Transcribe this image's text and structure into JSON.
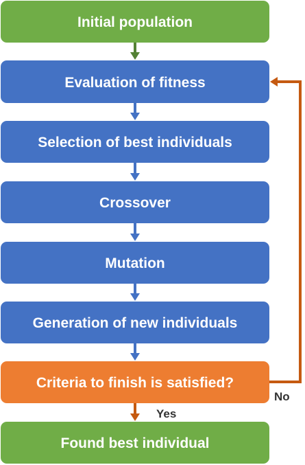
{
  "diagram": {
    "colors": {
      "green": "#70ad47",
      "blue": "#4472c4",
      "orange": "#ed7d31",
      "arrow_blue": "#4472c4",
      "arrow_green": "#548235",
      "arrow_orange": "#c55a11"
    },
    "steps": [
      {
        "id": "initial",
        "label": "Initial population",
        "kind": "start"
      },
      {
        "id": "evaluate",
        "label": "Evaluation of fitness",
        "kind": "process"
      },
      {
        "id": "select",
        "label": "Selection of best individuals",
        "kind": "process"
      },
      {
        "id": "crossover",
        "label": "Crossover",
        "kind": "process"
      },
      {
        "id": "mutation",
        "label": "Mutation",
        "kind": "process"
      },
      {
        "id": "generation",
        "label": "Generation of new individuals",
        "kind": "process"
      },
      {
        "id": "criteria",
        "label": "Criteria to finish is satisfied?",
        "kind": "decision"
      },
      {
        "id": "found",
        "label": "Found best individual",
        "kind": "end"
      }
    ],
    "edges": [
      {
        "from": "initial",
        "to": "evaluate"
      },
      {
        "from": "evaluate",
        "to": "select"
      },
      {
        "from": "select",
        "to": "crossover"
      },
      {
        "from": "crossover",
        "to": "mutation"
      },
      {
        "from": "mutation",
        "to": "generation"
      },
      {
        "from": "generation",
        "to": "criteria"
      },
      {
        "from": "criteria",
        "to": "found",
        "label": "Yes"
      },
      {
        "from": "criteria",
        "to": "evaluate",
        "label": "No",
        "loop": true
      }
    ]
  }
}
